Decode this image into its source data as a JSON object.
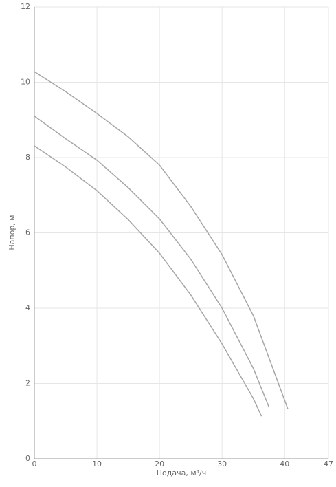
{
  "chart_data": {
    "type": "line",
    "x_label": "Подача, м³/ч",
    "y_label": "Напор, м",
    "xlim": [
      0,
      47
    ],
    "xticks": [
      0,
      10,
      20,
      30,
      40,
      47
    ],
    "ylim": [
      0,
      12
    ],
    "yticks": [
      0,
      2,
      4,
      6,
      8,
      10,
      12
    ],
    "grid": true,
    "series": [
      {
        "color": "#a6a6a6",
        "x": [
          0,
          5,
          10,
          15,
          20,
          25,
          30,
          35,
          40.5
        ],
        "values": [
          10.28,
          9.75,
          9.17,
          8.55,
          7.8,
          6.7,
          5.42,
          3.8,
          1.33
        ]
      },
      {
        "color": "#a6a6a6",
        "x": [
          0,
          5,
          10,
          15,
          20,
          25,
          30,
          35,
          37.5
        ],
        "values": [
          9.1,
          8.5,
          7.93,
          7.2,
          6.37,
          5.3,
          4.0,
          2.4,
          1.37
        ]
      },
      {
        "color": "#a6a6a6",
        "x": [
          0,
          5,
          10,
          15,
          20,
          25,
          30,
          35,
          36.3
        ],
        "values": [
          8.31,
          7.75,
          7.12,
          6.35,
          5.46,
          4.35,
          3.05,
          1.6,
          1.13
        ]
      }
    ]
  }
}
